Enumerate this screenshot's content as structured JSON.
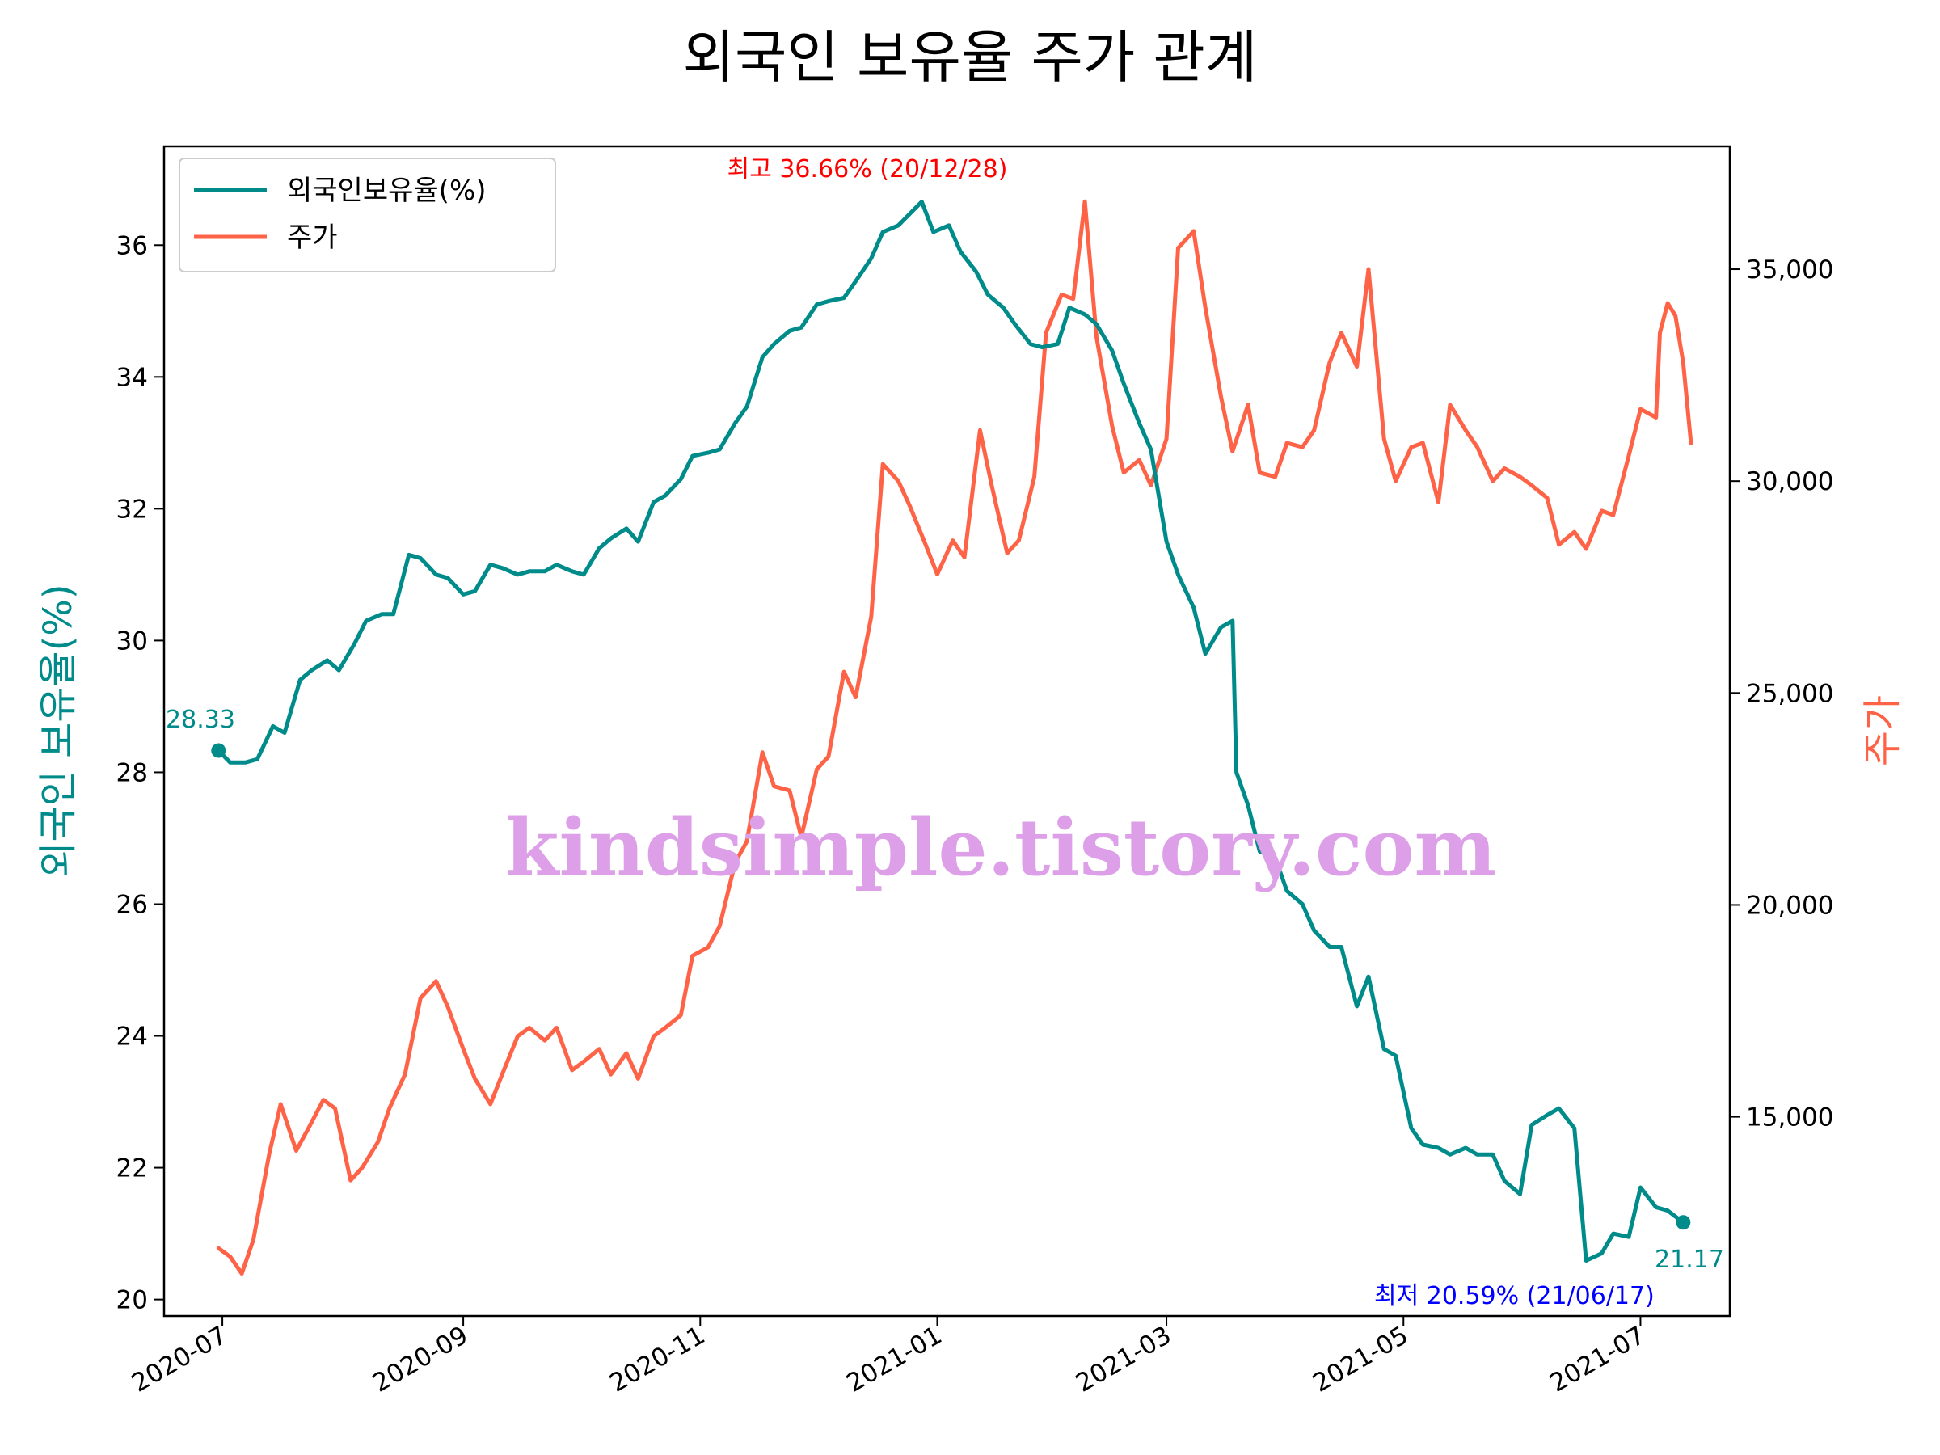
{
  "chart_data": {
    "type": "line",
    "title": "외국인 보유율 주가 관계",
    "ylabel": "외국인 보유율(%)",
    "y2label": "주가",
    "xlim": [
      "2020-06-16",
      "2021-07-24"
    ],
    "ylim": [
      19.75,
      37.5
    ],
    "y2lim": [
      10300,
      37900
    ],
    "x_ticks": [
      "2020-07",
      "2020-09",
      "2020-11",
      "2021-01",
      "2021-03",
      "2021-05",
      "2021-07"
    ],
    "y_ticks": [
      20,
      22,
      24,
      26,
      28,
      30,
      32,
      34,
      36
    ],
    "y2_ticks": [
      15000,
      20000,
      25000,
      30000,
      35000
    ],
    "y2_tick_labels": [
      "15,000",
      "20,000",
      "25,000",
      "30,000",
      "35,000"
    ],
    "legend_position": "upper-left",
    "grid": false,
    "colors": {
      "foreign": "#008b8b",
      "price": "#ff6347",
      "max_annot": "#ff0000",
      "min_annot": "#0000ff"
    },
    "series": [
      {
        "name": "외국인보유율(%)",
        "axis": "left",
        "points": [
          [
            "2020-06-30",
            28.33
          ],
          [
            "2020-07-03",
            28.15
          ],
          [
            "2020-07-07",
            28.15
          ],
          [
            "2020-07-10",
            28.2
          ],
          [
            "2020-07-14",
            28.7
          ],
          [
            "2020-07-17",
            28.6
          ],
          [
            "2020-07-21",
            29.4
          ],
          [
            "2020-07-24",
            29.55
          ],
          [
            "2020-07-28",
            29.7
          ],
          [
            "2020-07-31",
            29.55
          ],
          [
            "2020-08-04",
            29.95
          ],
          [
            "2020-08-07",
            30.3
          ],
          [
            "2020-08-11",
            30.4
          ],
          [
            "2020-08-14",
            30.4
          ],
          [
            "2020-08-18",
            31.3
          ],
          [
            "2020-08-21",
            31.25
          ],
          [
            "2020-08-25",
            31.0
          ],
          [
            "2020-08-28",
            30.95
          ],
          [
            "2020-09-01",
            30.7
          ],
          [
            "2020-09-04",
            30.75
          ],
          [
            "2020-09-08",
            31.15
          ],
          [
            "2020-09-11",
            31.1
          ],
          [
            "2020-09-15",
            31.0
          ],
          [
            "2020-09-18",
            31.05
          ],
          [
            "2020-09-22",
            31.05
          ],
          [
            "2020-09-25",
            31.15
          ],
          [
            "2020-09-29",
            31.05
          ],
          [
            "2020-10-02",
            31.0
          ],
          [
            "2020-10-06",
            31.4
          ],
          [
            "2020-10-09",
            31.55
          ],
          [
            "2020-10-13",
            31.7
          ],
          [
            "2020-10-16",
            31.5
          ],
          [
            "2020-10-20",
            32.1
          ],
          [
            "2020-10-23",
            32.2
          ],
          [
            "2020-10-27",
            32.45
          ],
          [
            "2020-10-30",
            32.8
          ],
          [
            "2020-11-03",
            32.85
          ],
          [
            "2020-11-06",
            32.9
          ],
          [
            "2020-11-10",
            33.3
          ],
          [
            "2020-11-13",
            33.55
          ],
          [
            "2020-11-17",
            34.3
          ],
          [
            "2020-11-20",
            34.5
          ],
          [
            "2020-11-24",
            34.7
          ],
          [
            "2020-11-27",
            34.75
          ],
          [
            "2020-12-01",
            35.1
          ],
          [
            "2020-12-04",
            35.15
          ],
          [
            "2020-12-08",
            35.2
          ],
          [
            "2020-12-11",
            35.45
          ],
          [
            "2020-12-15",
            35.8
          ],
          [
            "2020-12-18",
            36.2
          ],
          [
            "2020-12-22",
            36.3
          ],
          [
            "2020-12-28",
            36.66
          ],
          [
            "2020-12-31",
            36.2
          ],
          [
            "2021-01-04",
            36.3
          ],
          [
            "2021-01-07",
            35.9
          ],
          [
            "2021-01-11",
            35.6
          ],
          [
            "2021-01-14",
            35.25
          ],
          [
            "2021-01-18",
            35.05
          ],
          [
            "2021-01-21",
            34.8
          ],
          [
            "2021-01-25",
            34.5
          ],
          [
            "2021-01-28",
            34.45
          ],
          [
            "2021-02-01",
            34.5
          ],
          [
            "2021-02-04",
            35.05
          ],
          [
            "2021-02-08",
            34.95
          ],
          [
            "2021-02-11",
            34.8
          ],
          [
            "2021-02-15",
            34.4
          ],
          [
            "2021-02-18",
            33.9
          ],
          [
            "2021-02-22",
            33.3
          ],
          [
            "2021-02-25",
            32.9
          ],
          [
            "2021-03-01",
            31.5
          ],
          [
            "2021-03-04",
            31.0
          ],
          [
            "2021-03-08",
            30.5
          ],
          [
            "2021-03-11",
            29.8
          ],
          [
            "2021-03-15",
            30.2
          ],
          [
            "2021-03-18",
            30.3
          ],
          [
            "2021-03-19",
            28.0
          ],
          [
            "2021-03-22",
            27.5
          ],
          [
            "2021-03-25",
            26.8
          ],
          [
            "2021-03-29",
            26.7
          ],
          [
            "2021-04-01",
            26.2
          ],
          [
            "2021-04-05",
            26.0
          ],
          [
            "2021-04-08",
            25.6
          ],
          [
            "2021-04-12",
            25.35
          ],
          [
            "2021-04-15",
            25.35
          ],
          [
            "2021-04-19",
            24.45
          ],
          [
            "2021-04-22",
            24.9
          ],
          [
            "2021-04-26",
            23.8
          ],
          [
            "2021-04-29",
            23.7
          ],
          [
            "2021-05-03",
            22.6
          ],
          [
            "2021-05-06",
            22.35
          ],
          [
            "2021-05-10",
            22.3
          ],
          [
            "2021-05-13",
            22.2
          ],
          [
            "2021-05-17",
            22.3
          ],
          [
            "2021-05-20",
            22.2
          ],
          [
            "2021-05-24",
            22.2
          ],
          [
            "2021-05-27",
            21.8
          ],
          [
            "2021-05-31",
            21.6
          ],
          [
            "2021-06-03",
            22.65
          ],
          [
            "2021-06-07",
            22.8
          ],
          [
            "2021-06-10",
            22.9
          ],
          [
            "2021-06-14",
            22.6
          ],
          [
            "2021-06-17",
            20.59
          ],
          [
            "2021-06-21",
            20.7
          ],
          [
            "2021-06-24",
            21.0
          ],
          [
            "2021-06-28",
            20.95
          ],
          [
            "2021-07-01",
            21.7
          ],
          [
            "2021-07-05",
            21.4
          ],
          [
            "2021-07-08",
            21.35
          ],
          [
            "2021-07-12",
            21.17
          ]
        ]
      },
      {
        "name": "주가",
        "axis": "right",
        "points": [
          [
            "2020-06-30",
            11900
          ],
          [
            "2020-07-03",
            11700
          ],
          [
            "2020-07-06",
            11300
          ],
          [
            "2020-07-09",
            12100
          ],
          [
            "2020-07-13",
            14100
          ],
          [
            "2020-07-16",
            15300
          ],
          [
            "2020-07-20",
            14200
          ],
          [
            "2020-07-23",
            14700
          ],
          [
            "2020-07-27",
            15400
          ],
          [
            "2020-07-30",
            15200
          ],
          [
            "2020-08-03",
            13500
          ],
          [
            "2020-08-06",
            13800
          ],
          [
            "2020-08-10",
            14400
          ],
          [
            "2020-08-13",
            15200
          ],
          [
            "2020-08-17",
            16000
          ],
          [
            "2020-08-21",
            17800
          ],
          [
            "2020-08-25",
            18200
          ],
          [
            "2020-08-28",
            17600
          ],
          [
            "2020-09-01",
            16600
          ],
          [
            "2020-09-04",
            15900
          ],
          [
            "2020-09-08",
            15300
          ],
          [
            "2020-09-11",
            16000
          ],
          [
            "2020-09-15",
            16900
          ],
          [
            "2020-09-18",
            17100
          ],
          [
            "2020-09-22",
            16800
          ],
          [
            "2020-09-25",
            17100
          ],
          [
            "2020-09-29",
            16100
          ],
          [
            "2020-10-02",
            16300
          ],
          [
            "2020-10-06",
            16600
          ],
          [
            "2020-10-09",
            16000
          ],
          [
            "2020-10-13",
            16500
          ],
          [
            "2020-10-16",
            15900
          ],
          [
            "2020-10-20",
            16900
          ],
          [
            "2020-10-23",
            17100
          ],
          [
            "2020-10-27",
            17400
          ],
          [
            "2020-10-30",
            18800
          ],
          [
            "2020-11-03",
            19000
          ],
          [
            "2020-11-06",
            19500
          ],
          [
            "2020-11-10",
            21000
          ],
          [
            "2020-11-13",
            21500
          ],
          [
            "2020-11-17",
            23600
          ],
          [
            "2020-11-20",
            22800
          ],
          [
            "2020-11-24",
            22700
          ],
          [
            "2020-11-27",
            21600
          ],
          [
            "2020-12-01",
            23200
          ],
          [
            "2020-12-04",
            23500
          ],
          [
            "2020-12-08",
            25500
          ],
          [
            "2020-12-11",
            24900
          ],
          [
            "2020-12-15",
            26800
          ],
          [
            "2020-12-18",
            30400
          ],
          [
            "2020-12-22",
            30000
          ],
          [
            "2020-12-25",
            29400
          ],
          [
            "2020-12-29",
            28500
          ],
          [
            "2021-01-01",
            27800
          ],
          [
            "2021-01-05",
            28600
          ],
          [
            "2021-01-08",
            28200
          ],
          [
            "2021-01-12",
            31200
          ],
          [
            "2021-01-15",
            29900
          ],
          [
            "2021-01-19",
            28300
          ],
          [
            "2021-01-22",
            28600
          ],
          [
            "2021-01-26",
            30100
          ],
          [
            "2021-01-29",
            33500
          ],
          [
            "2021-02-02",
            34400
          ],
          [
            "2021-02-05",
            34300
          ],
          [
            "2021-02-08",
            36600
          ],
          [
            "2021-02-11",
            33400
          ],
          [
            "2021-02-15",
            31300
          ],
          [
            "2021-02-18",
            30200
          ],
          [
            "2021-02-22",
            30500
          ],
          [
            "2021-02-25",
            29900
          ],
          [
            "2021-03-01",
            31000
          ],
          [
            "2021-03-04",
            35500
          ],
          [
            "2021-03-08",
            35900
          ],
          [
            "2021-03-11",
            34100
          ],
          [
            "2021-03-15",
            32000
          ],
          [
            "2021-03-18",
            30700
          ],
          [
            "2021-03-22",
            31800
          ],
          [
            "2021-03-25",
            30200
          ],
          [
            "2021-03-29",
            30100
          ],
          [
            "2021-04-01",
            30900
          ],
          [
            "2021-04-05",
            30800
          ],
          [
            "2021-04-08",
            31200
          ],
          [
            "2021-04-12",
            32800
          ],
          [
            "2021-04-15",
            33500
          ],
          [
            "2021-04-19",
            32700
          ],
          [
            "2021-04-22",
            35000
          ],
          [
            "2021-04-26",
            31000
          ],
          [
            "2021-04-29",
            30000
          ],
          [
            "2021-05-03",
            30800
          ],
          [
            "2021-05-06",
            30900
          ],
          [
            "2021-05-10",
            29500
          ],
          [
            "2021-05-13",
            31800
          ],
          [
            "2021-05-17",
            31200
          ],
          [
            "2021-05-20",
            30800
          ],
          [
            "2021-05-24",
            30000
          ],
          [
            "2021-05-27",
            30300
          ],
          [
            "2021-05-31",
            30100
          ],
          [
            "2021-06-03",
            29900
          ],
          [
            "2021-06-07",
            29600
          ],
          [
            "2021-06-10",
            28500
          ],
          [
            "2021-06-14",
            28800
          ],
          [
            "2021-06-17",
            28400
          ],
          [
            "2021-06-21",
            29300
          ],
          [
            "2021-06-24",
            29200
          ],
          [
            "2021-06-28",
            30600
          ],
          [
            "2021-07-01",
            31700
          ],
          [
            "2021-07-05",
            31500
          ],
          [
            "2021-07-06",
            33500
          ],
          [
            "2021-07-08",
            34200
          ],
          [
            "2021-07-10",
            33900
          ],
          [
            "2021-07-12",
            32800
          ],
          [
            "2021-07-14",
            30900
          ]
        ]
      }
    ],
    "annotations": {
      "max": {
        "text": "최고 36.66% (20/12/28)",
        "date": "2020-12-28",
        "value": 36.66
      },
      "min": {
        "text": "최저 20.59% (21/06/17)",
        "date": "2021-06-17",
        "value": 20.59
      },
      "start": {
        "text": "28.33",
        "date": "2020-06-30",
        "value": 28.33
      },
      "end": {
        "text": "21.17",
        "date": "2021-07-12",
        "value": 21.17
      }
    }
  },
  "watermark": "kindsimple.tistory.com"
}
